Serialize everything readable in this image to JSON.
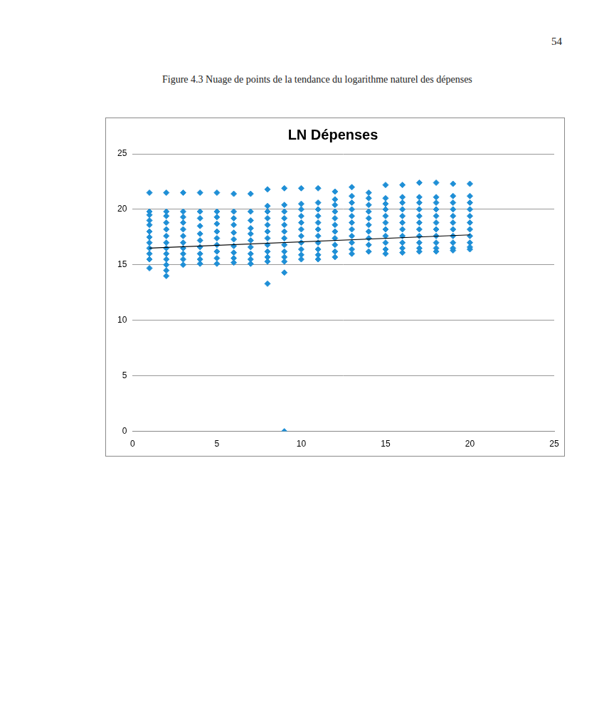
{
  "page": {
    "number": 54,
    "caption": "Figure 4.3 Nuage de points de la tendance du logarithme naturel des dépenses"
  },
  "chart_data": {
    "type": "scatter",
    "title": "LN Dépenses",
    "xlim": [
      0,
      25
    ],
    "xticks": [
      0,
      5,
      10,
      15,
      20,
      25
    ],
    "ylim": [
      0,
      25
    ],
    "yticks": [
      0,
      5,
      10,
      15,
      20,
      25
    ],
    "grid": true,
    "series": [
      {
        "type": "scatter",
        "color": "#1f8fd6",
        "marker": "diamond",
        "x": [
          1,
          1,
          1,
          1,
          1,
          1,
          1,
          1,
          1,
          1,
          1,
          1,
          2,
          2,
          2,
          2,
          2,
          2,
          2,
          2,
          2,
          2,
          2,
          2,
          2,
          3,
          3,
          3,
          3,
          3,
          3,
          3,
          3,
          3,
          3,
          3,
          4,
          4,
          4,
          4,
          4,
          4,
          4,
          4,
          4,
          4,
          5,
          5,
          5,
          5,
          5,
          5,
          5,
          5,
          5,
          5,
          6,
          6,
          6,
          6,
          6,
          6,
          6,
          6,
          6,
          6,
          7,
          7,
          7,
          7,
          7,
          7,
          7,
          7,
          7,
          7,
          8,
          8,
          8,
          8,
          8,
          8,
          8,
          8,
          8,
          8,
          8,
          8,
          9,
          9,
          9,
          9,
          9,
          9,
          9,
          9,
          9,
          9,
          9,
          9,
          9,
          10,
          10,
          10,
          10,
          10,
          10,
          10,
          10,
          10,
          10,
          10,
          11,
          11,
          11,
          11,
          11,
          11,
          11,
          11,
          11,
          11,
          11,
          12,
          12,
          12,
          12,
          12,
          12,
          12,
          12,
          12,
          12,
          12,
          13,
          13,
          13,
          13,
          13,
          13,
          13,
          13,
          13,
          13,
          13,
          14,
          14,
          14,
          14,
          14,
          14,
          14,
          14,
          14,
          14,
          15,
          15,
          15,
          15,
          15,
          15,
          15,
          15,
          15,
          15,
          15,
          16,
          16,
          16,
          16,
          16,
          16,
          16,
          16,
          16,
          16,
          16,
          17,
          17,
          17,
          17,
          17,
          17,
          17,
          17,
          17,
          17,
          17,
          18,
          18,
          18,
          18,
          18,
          18,
          18,
          18,
          18,
          18,
          18,
          19,
          19,
          19,
          19,
          19,
          19,
          19,
          19,
          19,
          19,
          19,
          20,
          20,
          20,
          20,
          20,
          20,
          20,
          20,
          20,
          20,
          20
        ],
        "values": [
          21.5,
          19.8,
          19.5,
          19.0,
          18.6,
          18.0,
          17.5,
          17.0,
          16.5,
          16.0,
          15.5,
          14.7,
          21.5,
          19.8,
          19.4,
          18.8,
          18.2,
          17.6,
          17.0,
          16.5,
          16.0,
          15.5,
          15.0,
          14.5,
          14.0,
          21.5,
          19.8,
          19.3,
          18.8,
          18.2,
          17.6,
          17.0,
          16.5,
          16.0,
          15.5,
          15.0,
          21.5,
          19.8,
          19.2,
          18.5,
          17.8,
          17.2,
          16.6,
          16.0,
          15.5,
          15.1,
          21.5,
          19.8,
          19.3,
          18.7,
          18.0,
          17.4,
          16.8,
          16.2,
          15.6,
          15.1,
          21.4,
          19.8,
          19.2,
          18.6,
          17.9,
          17.3,
          16.7,
          16.1,
          15.6,
          15.2,
          21.4,
          19.8,
          19.0,
          18.3,
          17.8,
          17.2,
          16.6,
          16.0,
          15.5,
          15.1,
          21.8,
          20.3,
          19.8,
          19.2,
          18.6,
          18.0,
          17.4,
          16.8,
          16.2,
          15.7,
          15.3,
          13.3,
          21.9,
          20.4,
          19.8,
          19.2,
          18.6,
          18.0,
          17.4,
          16.8,
          16.2,
          15.7,
          15.3,
          14.3,
          0,
          21.9,
          20.5,
          20.0,
          19.4,
          18.8,
          18.2,
          17.6,
          17.0,
          16.4,
          15.9,
          15.5,
          21.9,
          20.6,
          20.0,
          19.4,
          18.8,
          18.2,
          17.6,
          17.0,
          16.4,
          15.9,
          15.5,
          21.6,
          20.9,
          20.4,
          19.8,
          19.2,
          18.6,
          18.0,
          17.4,
          16.8,
          16.2,
          15.7,
          22.0,
          21.2,
          20.6,
          20.0,
          19.4,
          18.8,
          18.2,
          17.6,
          17.0,
          16.4,
          16.0,
          21.5,
          21.0,
          20.4,
          19.8,
          19.2,
          18.6,
          18.0,
          17.4,
          16.8,
          16.2,
          22.2,
          21.0,
          20.5,
          20.0,
          19.4,
          18.8,
          18.2,
          17.6,
          17.0,
          16.4,
          16.0,
          22.2,
          21.1,
          20.6,
          20.0,
          19.4,
          18.8,
          18.2,
          17.6,
          17.0,
          16.5,
          16.1,
          22.4,
          21.1,
          20.6,
          20.0,
          19.4,
          18.8,
          18.2,
          17.6,
          17.0,
          16.5,
          16.2,
          22.4,
          21.1,
          20.6,
          20.0,
          19.4,
          18.8,
          18.2,
          17.6,
          17.0,
          16.5,
          16.2,
          22.3,
          21.2,
          20.6,
          20.0,
          19.4,
          18.8,
          18.2,
          17.6,
          17.0,
          16.5,
          16.3,
          22.3,
          21.2,
          20.6,
          20.0,
          19.4,
          18.8,
          18.2,
          17.6,
          17.0,
          16.6,
          16.4
        ]
      },
      {
        "type": "line",
        "color": "#000000",
        "line_style": "solid",
        "x": [
          1,
          20
        ],
        "values": [
          16.5,
          17.7
        ]
      }
    ]
  }
}
